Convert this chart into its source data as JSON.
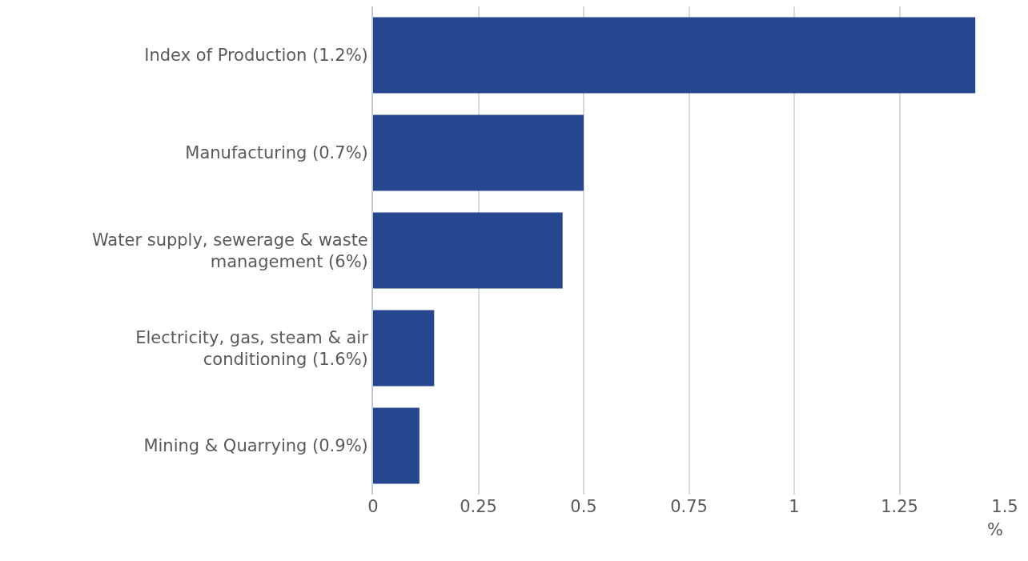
{
  "chart_data": {
    "type": "bar",
    "orientation": "horizontal",
    "xlabel": "%",
    "categories": [
      "Index of Production (1.2%)",
      "Manufacturing (0.7%)",
      "Water supply, sewerage & waste management (6%)",
      "Electricity, gas, steam & air conditioning (1.6%)",
      "Mining & Quarrying (0.9%)"
    ],
    "values": [
      1.43,
      0.5,
      0.45,
      0.145,
      0.11
    ],
    "color": "#26468f",
    "xlim": [
      0,
      1.5
    ],
    "xticks": [
      0,
      0.25,
      0.5,
      0.75,
      1,
      1.25,
      1.5
    ],
    "grid": "x"
  }
}
